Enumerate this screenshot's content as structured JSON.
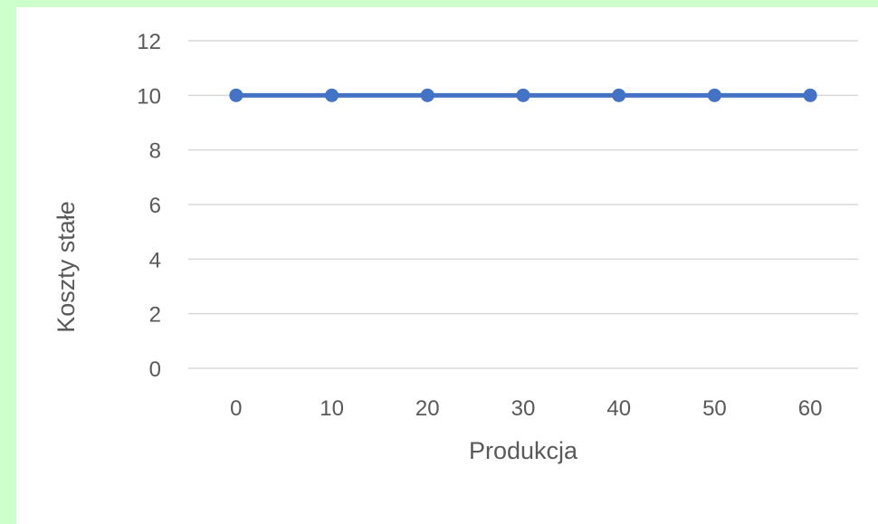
{
  "chart_data": {
    "type": "line",
    "title": "",
    "xlabel": "Produkcja",
    "ylabel": "Koszty stałe",
    "categories": [
      "0",
      "10",
      "20",
      "30",
      "40",
      "50",
      "60"
    ],
    "series": [
      {
        "values": [
          10,
          10,
          10,
          10,
          10,
          10,
          10
        ]
      }
    ],
    "ylim": [
      0,
      12
    ],
    "yticks": [
      "0",
      "2",
      "4",
      "6",
      "8",
      "10",
      "12"
    ],
    "grid": true,
    "legend": "none",
    "colors": {
      "series": "#4472c4",
      "grid": "#d9d9d9",
      "text": "#595959",
      "frame_background": "#ccffcc",
      "plot_background": "#ffffff"
    }
  }
}
